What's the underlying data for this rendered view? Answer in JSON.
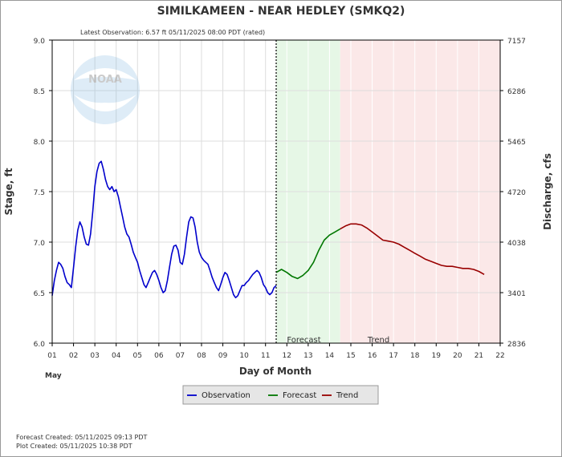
{
  "chart_data": {
    "type": "line",
    "title": "SIMILKAMEEN - NEAR HEDLEY  (SMKQ2)",
    "subtitle": "Latest Observation: 6.57 ft 05/11/2025 08:00 PDT (rated)",
    "xlabel": "Day of Month",
    "month_label": "May",
    "ylabel_left": "Stage, ft",
    "ylabel_right": "Discharge, cfs",
    "xlim": [
      1,
      22
    ],
    "ylim": [
      6.0,
      9.0
    ],
    "x_ticks": [
      "01",
      "02",
      "03",
      "04",
      "05",
      "06",
      "07",
      "08",
      "09",
      "10",
      "11",
      "12",
      "13",
      "14",
      "15",
      "16",
      "17",
      "18",
      "19",
      "20",
      "21",
      "22"
    ],
    "y_ticks_left": [
      "6.0",
      "6.5",
      "7.0",
      "7.5",
      "8.0",
      "8.5",
      "9.0"
    ],
    "y_ticks_right": [
      {
        "stage": 6.0,
        "label": "2836"
      },
      {
        "stage": 6.5,
        "label": "3401"
      },
      {
        "stage": 7.0,
        "label": "4038"
      },
      {
        "stage": 7.5,
        "label": "4720"
      },
      {
        "stage": 8.0,
        "label": "5465"
      },
      {
        "stage": 8.5,
        "label": "6286"
      },
      {
        "stage": 9.0,
        "label": "7157"
      }
    ],
    "regions": [
      {
        "label": "Forecast",
        "from": 11.5,
        "to": 14.5,
        "color": "#e6f7e6"
      },
      {
        "label": "Trend",
        "from": 14.5,
        "to": 22.0,
        "color": "#fbe8e8"
      }
    ],
    "now_marker_x": 11.5,
    "grid": true,
    "legend_placement": "bottom",
    "series": [
      {
        "name": "Observation",
        "color": "#0000cc",
        "x": [
          1.0,
          1.1,
          1.2,
          1.3,
          1.4,
          1.5,
          1.6,
          1.7,
          1.8,
          1.9,
          2.0,
          2.1,
          2.2,
          2.3,
          2.4,
          2.5,
          2.6,
          2.7,
          2.8,
          2.9,
          3.0,
          3.1,
          3.2,
          3.3,
          3.4,
          3.5,
          3.6,
          3.7,
          3.8,
          3.9,
          4.0,
          4.1,
          4.2,
          4.3,
          4.4,
          4.5,
          4.6,
          4.7,
          4.8,
          4.9,
          5.0,
          5.1,
          5.2,
          5.3,
          5.4,
          5.5,
          5.6,
          5.7,
          5.8,
          5.9,
          6.0,
          6.1,
          6.2,
          6.3,
          6.4,
          6.5,
          6.6,
          6.7,
          6.8,
          6.9,
          7.0,
          7.1,
          7.2,
          7.3,
          7.4,
          7.5,
          7.6,
          7.7,
          7.8,
          7.9,
          8.0,
          8.1,
          8.2,
          8.3,
          8.4,
          8.5,
          8.6,
          8.7,
          8.8,
          8.9,
          9.0,
          9.1,
          9.2,
          9.3,
          9.4,
          9.5,
          9.6,
          9.7,
          9.8,
          9.9,
          10.0,
          10.1,
          10.2,
          10.3,
          10.4,
          10.5,
          10.6,
          10.7,
          10.8,
          10.9,
          11.0,
          11.1,
          11.2,
          11.3,
          11.4,
          11.5
        ],
        "values": [
          6.47,
          6.62,
          6.72,
          6.8,
          6.78,
          6.74,
          6.66,
          6.6,
          6.58,
          6.55,
          6.75,
          6.95,
          7.12,
          7.2,
          7.15,
          7.05,
          6.98,
          6.97,
          7.08,
          7.3,
          7.55,
          7.7,
          7.78,
          7.8,
          7.72,
          7.62,
          7.55,
          7.52,
          7.55,
          7.5,
          7.52,
          7.45,
          7.35,
          7.25,
          7.15,
          7.08,
          7.05,
          6.98,
          6.9,
          6.85,
          6.8,
          6.72,
          6.65,
          6.58,
          6.55,
          6.6,
          6.65,
          6.7,
          6.72,
          6.68,
          6.62,
          6.55,
          6.5,
          6.52,
          6.62,
          6.75,
          6.88,
          6.96,
          6.97,
          6.92,
          6.8,
          6.78,
          6.88,
          7.05,
          7.2,
          7.25,
          7.24,
          7.15,
          7.0,
          6.9,
          6.85,
          6.82,
          6.8,
          6.78,
          6.72,
          6.65,
          6.6,
          6.55,
          6.52,
          6.58,
          6.65,
          6.7,
          6.68,
          6.62,
          6.55,
          6.48,
          6.45,
          6.47,
          6.52,
          6.57,
          6.57,
          6.6,
          6.62,
          6.65,
          6.68,
          6.7,
          6.72,
          6.7,
          6.65,
          6.58,
          6.55,
          6.5,
          6.48,
          6.5,
          6.55,
          6.57
        ]
      },
      {
        "name": "Forecast",
        "color": "#007700",
        "x": [
          11.5,
          11.75,
          12.0,
          12.25,
          12.5,
          12.75,
          13.0,
          13.25,
          13.5,
          13.75,
          14.0,
          14.25,
          14.5
        ],
        "values": [
          6.7,
          6.73,
          6.7,
          6.66,
          6.64,
          6.67,
          6.72,
          6.8,
          6.92,
          7.02,
          7.07,
          7.1,
          7.13
        ]
      },
      {
        "name": "Trend",
        "color": "#990000",
        "x": [
          14.5,
          14.75,
          15.0,
          15.25,
          15.5,
          15.75,
          16.0,
          16.25,
          16.5,
          16.75,
          17.0,
          17.25,
          17.5,
          17.75,
          18.0,
          18.25,
          18.5,
          18.75,
          19.0,
          19.25,
          19.5,
          19.75,
          20.0,
          20.25,
          20.5,
          20.75,
          21.0,
          21.25
        ],
        "values": [
          7.13,
          7.16,
          7.18,
          7.18,
          7.17,
          7.14,
          7.1,
          7.06,
          7.02,
          7.01,
          7.0,
          6.98,
          6.95,
          6.92,
          6.89,
          6.86,
          6.83,
          6.81,
          6.79,
          6.77,
          6.76,
          6.76,
          6.75,
          6.74,
          6.74,
          6.73,
          6.71,
          6.68
        ]
      }
    ]
  },
  "footer": {
    "forecast_created": "Forecast Created: 05/11/2025 09:13 PDT",
    "plot_created": "Plot Created: 05/11/2025 10:38 PDT"
  },
  "logo_text": "NOAA"
}
